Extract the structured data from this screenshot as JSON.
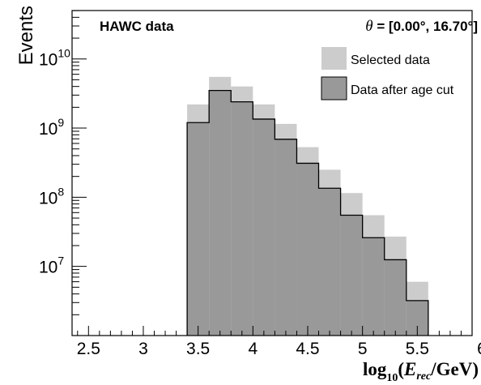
{
  "chart_data": {
    "type": "histogram",
    "annotation_left": "HAWC data",
    "annotation_right": {
      "theta_symbol": "θ",
      "range_text": " = [0.00°, 16.70°]"
    },
    "ylabel": "Events",
    "xlabel": {
      "log": "log",
      "base": "10",
      "open": "(",
      "E": "E",
      "sub": "rec",
      "rest": "/GeV)"
    },
    "xlim": [
      2.35,
      6.0
    ],
    "ylog_range": [
      6.0,
      10.7
    ],
    "x_scale": "linear",
    "y_scale": "log",
    "x_ticks": [
      {
        "value": 2.5,
        "label": "2.5"
      },
      {
        "value": 3.0,
        "label": "3"
      },
      {
        "value": 3.5,
        "label": "3.5"
      },
      {
        "value": 4.0,
        "label": "4"
      },
      {
        "value": 4.5,
        "label": "4.5"
      },
      {
        "value": 5.0,
        "label": "5"
      },
      {
        "value": 5.5,
        "label": "5.5"
      },
      {
        "value": 6.0,
        "label": "6"
      }
    ],
    "y_ticks": [
      {
        "exp": 7,
        "base": "10",
        "sup": "7"
      },
      {
        "exp": 8,
        "base": "10",
        "sup": "8"
      },
      {
        "exp": 9,
        "base": "10",
        "sup": "9"
      },
      {
        "exp": 10,
        "base": "10",
        "sup": "10"
      }
    ],
    "bin_edges": [
      3.4,
      3.6,
      3.8,
      4.0,
      4.2,
      4.4,
      4.6,
      4.8,
      5.0,
      5.2,
      5.4,
      5.6
    ],
    "series": [
      {
        "name": "Selected data",
        "color": "#cccccc",
        "values": [
          2200000000.0,
          5500000000.0,
          4000000000.0,
          2200000000.0,
          1150000000.0,
          530000000.0,
          250000000.0,
          115000000.0,
          55000000.0,
          27000000.0,
          6000000.0
        ]
      },
      {
        "name": "Data after age cut",
        "color": "#999999",
        "values": [
          1200000000.0,
          3500000000.0,
          2400000000.0,
          1350000000.0,
          690000000.0,
          310000000.0,
          135000000.0,
          55000000.0,
          26000000.0,
          12500000.0,
          3200000.0
        ]
      }
    ],
    "legend_position": "top-right",
    "grid": false
  }
}
